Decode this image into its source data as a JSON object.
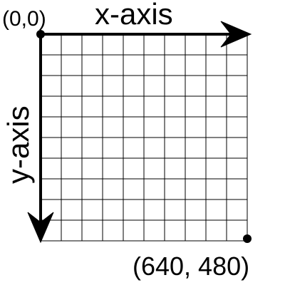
{
  "diagram": {
    "origin_label": "(0,0)",
    "x_axis_label": "x-axis",
    "y_axis_label": "y-axis",
    "corner_label": "(640, 480)",
    "grid": {
      "columns": 10,
      "rows": 10
    },
    "colors": {
      "line": "#000000",
      "background": "#ffffff"
    }
  }
}
